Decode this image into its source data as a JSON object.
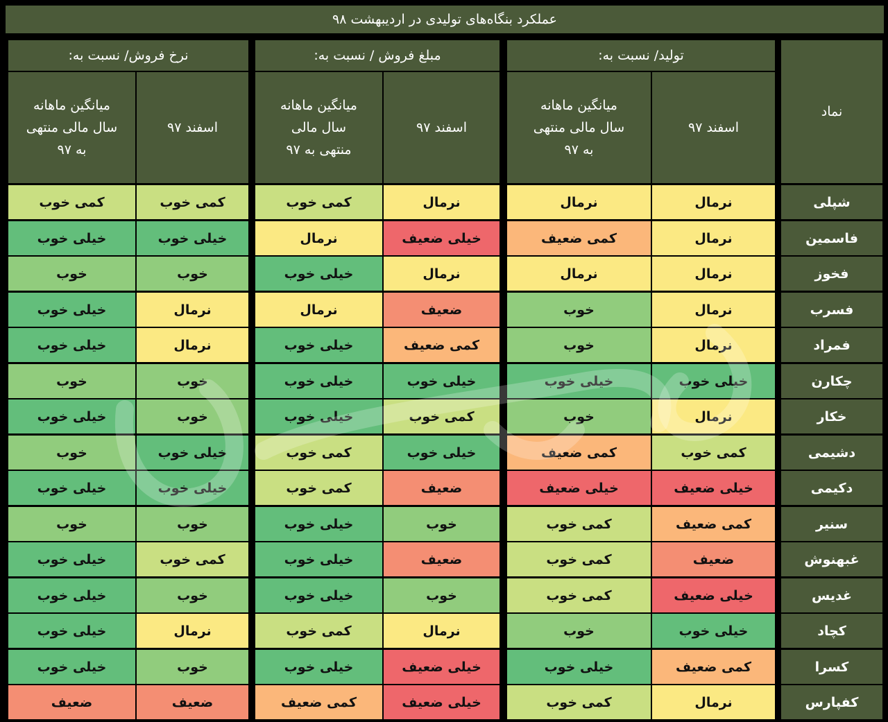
{
  "title": "عملکرد بنگاه‌های تولیدی در اردیبهشت ۹۸",
  "groups": {
    "production": "تولید/ نسبت به:",
    "sales_amount": "مبلغ فروش / نسبت به:",
    "sales_rate": "نرخ فروش/ نسبت به:"
  },
  "subheaders": {
    "symbol": "نماد",
    "esfand": "اسفند ۹۷",
    "avg_prod": "میانگین ماهانه سال مالی منتهی به ۹۷",
    "avg_sales": "میانگین ماهانه سال مالی منتهی به ۹۷",
    "avg_rate": "میانگین ماهانه سال مالی منتهی به ۹۷"
  },
  "legend_colors": {
    "خیلی خوب": "#63be7b",
    "خوب": "#91cc7d",
    "کمی خوب": "#c9df82",
    "نرمال": "#fbe983",
    "کمی ضعیف": "#fbb77a",
    "ضعیف": "#f48e73",
    "خیلی ضعیف": "#ee676b"
  },
  "rows": [
    {
      "symbol": "شپلی",
      "values": [
        "نرمال",
        "نرمال",
        "نرمال",
        "کمی خوب",
        "کمی خوب",
        "کمی خوب"
      ]
    },
    {
      "symbol": "فاسمین",
      "values": [
        "نرمال",
        "کمی ضعیف",
        "خیلی ضعیف",
        "نرمال",
        "خیلی خوب",
        "خیلی خوب"
      ]
    },
    {
      "symbol": "فخوز",
      "values": [
        "نرمال",
        "نرمال",
        "نرمال",
        "خیلی خوب",
        "خوب",
        "خوب"
      ]
    },
    {
      "symbol": "فسرب",
      "values": [
        "نرمال",
        "خوب",
        "ضعیف",
        "نرمال",
        "نرمال",
        "خیلی خوب"
      ]
    },
    {
      "symbol": "فمراد",
      "values": [
        "نرمال",
        "خوب",
        "کمی ضعیف",
        "خیلی خوب",
        "نرمال",
        "خیلی خوب"
      ]
    },
    {
      "symbol": "چکارن",
      "values": [
        "خیلی خوب",
        "خیلی خوب",
        "خیلی خوب",
        "خیلی خوب",
        "خوب",
        "خوب"
      ]
    },
    {
      "symbol": "خکار",
      "values": [
        "نرمال",
        "خوب",
        "کمی خوب",
        "خیلی خوب",
        "خوب",
        "خیلی خوب"
      ]
    },
    {
      "symbol": "دشیمی",
      "values": [
        "کمی خوب",
        "کمی ضعیف",
        "خیلی خوب",
        "کمی خوب",
        "خیلی خوب",
        "خوب"
      ]
    },
    {
      "symbol": "دکیمی",
      "values": [
        "خیلی ضعیف",
        "خیلی ضعیف",
        "ضعیف",
        "کمی خوب",
        "خیلی خوب",
        "خیلی خوب"
      ]
    },
    {
      "symbol": "سنیر",
      "values": [
        "کمی ضعیف",
        "کمی خوب",
        "خوب",
        "خیلی خوب",
        "خوب",
        "خوب"
      ]
    },
    {
      "symbol": "غبهنوش",
      "values": [
        "ضعیف",
        "کمی خوب",
        "ضعیف",
        "خیلی خوب",
        "کمی خوب",
        "خیلی خوب"
      ]
    },
    {
      "symbol": "غدیس",
      "values": [
        "خیلی ضعیف",
        "کمی خوب",
        "خوب",
        "خیلی خوب",
        "خوب",
        "خیلی خوب"
      ]
    },
    {
      "symbol": "کچاد",
      "values": [
        "خیلی خوب",
        "خوب",
        "نرمال",
        "کمی خوب",
        "نرمال",
        "خیلی خوب"
      ]
    },
    {
      "symbol": "کسرا",
      "values": [
        "کمی ضعیف",
        "خیلی خوب",
        "خیلی ضعیف",
        "خیلی خوب",
        "خوب",
        "خیلی خوب"
      ]
    },
    {
      "symbol": "کفپارس",
      "values": [
        "نرمال",
        "کمی خوب",
        "خیلی ضعیف",
        "کمی ضعیف",
        "ضعیف",
        "ضعیف"
      ]
    }
  ]
}
